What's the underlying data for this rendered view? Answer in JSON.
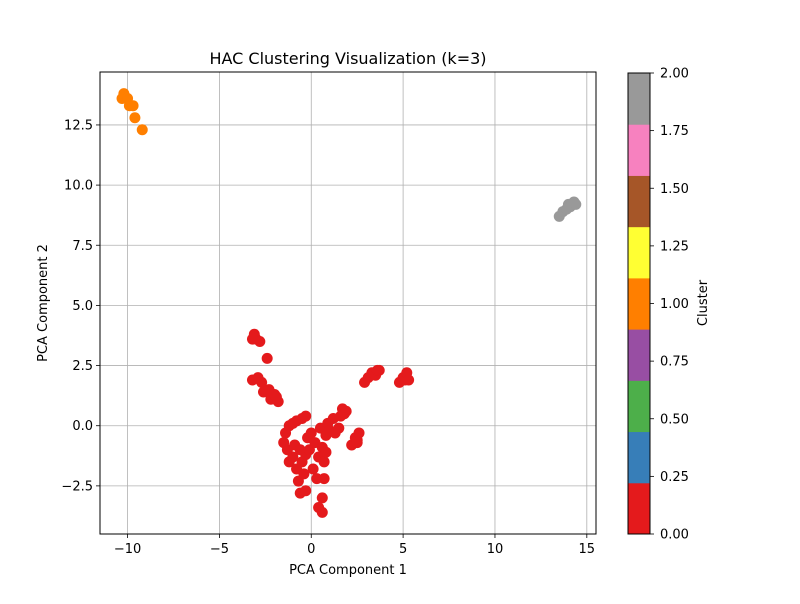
{
  "chart_data": {
    "type": "scatter",
    "title": "HAC Clustering Visualization (k=3)",
    "xlabel": "PCA Component 1",
    "ylabel": "PCA Component 2",
    "xlim": [
      -11.5,
      15.5
    ],
    "ylim": [
      -4.5,
      14.7
    ],
    "xticks": [
      -10,
      -5,
      0,
      5,
      10,
      15
    ],
    "xtick_labels": [
      "−10",
      "−5",
      "0",
      "5",
      "10",
      "15"
    ],
    "yticks": [
      -2.5,
      0.0,
      2.5,
      5.0,
      7.5,
      10.0,
      12.5
    ],
    "ytick_labels": [
      "−2.5",
      "0.0",
      "2.5",
      "5.0",
      "7.5",
      "10.0",
      "12.5"
    ],
    "grid": true,
    "series": [
      {
        "cluster": 0,
        "color": "#e41a1c",
        "points": [
          [
            -3.1,
            3.8
          ],
          [
            -3.0,
            3.6
          ],
          [
            -2.8,
            3.5
          ],
          [
            -3.2,
            3.6
          ],
          [
            -2.4,
            2.8
          ],
          [
            -3.2,
            1.9
          ],
          [
            -2.9,
            2.0
          ],
          [
            -2.7,
            1.8
          ],
          [
            -2.6,
            1.4
          ],
          [
            -2.3,
            1.5
          ],
          [
            -2.2,
            1.1
          ],
          [
            -2.0,
            1.3
          ],
          [
            -1.8,
            1.0
          ],
          [
            -1.9,
            1.2
          ],
          [
            -1.4,
            -0.3
          ],
          [
            -1.2,
            0.0
          ],
          [
            -1.0,
            0.1
          ],
          [
            -0.8,
            0.2
          ],
          [
            -0.5,
            0.3
          ],
          [
            -0.3,
            0.4
          ],
          [
            -1.5,
            -0.7
          ],
          [
            -1.3,
            -1.0
          ],
          [
            -1.2,
            -1.5
          ],
          [
            -1.0,
            -1.3
          ],
          [
            -0.9,
            -0.8
          ],
          [
            -0.8,
            -1.8
          ],
          [
            -0.7,
            -2.3
          ],
          [
            -0.6,
            -1.0
          ],
          [
            -0.5,
            -1.5
          ],
          [
            -0.4,
            -2.0
          ],
          [
            -0.3,
            -1.2
          ],
          [
            -0.2,
            -0.5
          ],
          [
            -0.1,
            -1.0
          ],
          [
            0.0,
            -0.3
          ],
          [
            0.1,
            -1.8
          ],
          [
            0.2,
            -0.7
          ],
          [
            0.3,
            -2.2
          ],
          [
            0.4,
            -1.3
          ],
          [
            0.5,
            -0.1
          ],
          [
            0.6,
            -0.9
          ],
          [
            0.7,
            -1.5
          ],
          [
            0.8,
            -0.4
          ],
          [
            0.9,
            0.1
          ],
          [
            1.0,
            -0.2
          ],
          [
            1.2,
            0.3
          ],
          [
            1.3,
            -0.3
          ],
          [
            1.5,
            -0.1
          ],
          [
            -0.6,
            -2.8
          ],
          [
            -0.3,
            -2.7
          ],
          [
            0.4,
            -3.4
          ],
          [
            0.6,
            -3.6
          ],
          [
            0.6,
            -3.0
          ],
          [
            0.7,
            -2.2
          ],
          [
            0.8,
            -1.1
          ],
          [
            1.7,
            0.7
          ],
          [
            1.8,
            0.5
          ],
          [
            1.9,
            0.6
          ],
          [
            1.6,
            0.4
          ],
          [
            2.2,
            -0.8
          ],
          [
            2.4,
            -0.5
          ],
          [
            2.5,
            -0.6
          ],
          [
            2.6,
            -0.3
          ],
          [
            2.5,
            -0.7
          ],
          [
            2.9,
            1.8
          ],
          [
            3.1,
            2.0
          ],
          [
            3.3,
            2.2
          ],
          [
            3.5,
            2.1
          ],
          [
            3.6,
            2.3
          ],
          [
            3.7,
            2.3
          ],
          [
            4.8,
            1.8
          ],
          [
            5.0,
            2.0
          ],
          [
            5.1,
            1.9
          ],
          [
            5.2,
            2.2
          ],
          [
            5.3,
            1.9
          ]
        ]
      },
      {
        "cluster": 1,
        "color": "#ff7f00",
        "points": [
          [
            -10.3,
            13.6
          ],
          [
            -10.2,
            13.8
          ],
          [
            -10.0,
            13.6
          ],
          [
            -9.9,
            13.3
          ],
          [
            -9.7,
            13.3
          ],
          [
            -9.6,
            12.8
          ],
          [
            -9.2,
            12.3
          ]
        ]
      },
      {
        "cluster": 2,
        "color": "#999999",
        "points": [
          [
            13.5,
            8.7
          ],
          [
            13.7,
            8.9
          ],
          [
            13.9,
            9.0
          ],
          [
            14.0,
            9.2
          ],
          [
            14.1,
            9.1
          ],
          [
            14.2,
            9.2
          ],
          [
            14.3,
            9.3
          ],
          [
            14.4,
            9.2
          ]
        ]
      }
    ],
    "colorbar": {
      "label": "Cluster",
      "range": [
        0.0,
        2.0
      ],
      "ticks": [
        0.0,
        0.25,
        0.5,
        0.75,
        1.0,
        1.25,
        1.5,
        1.75,
        2.0
      ],
      "tick_labels": [
        "0.00",
        "0.25",
        "0.50",
        "0.75",
        "1.00",
        "1.25",
        "1.50",
        "1.75",
        "2.00"
      ],
      "colors": [
        "#e41a1c",
        "#377eb8",
        "#4daf4a",
        "#984ea3",
        "#ff7f00",
        "#ffff33",
        "#a65628",
        "#f781bf",
        "#999999"
      ]
    }
  }
}
